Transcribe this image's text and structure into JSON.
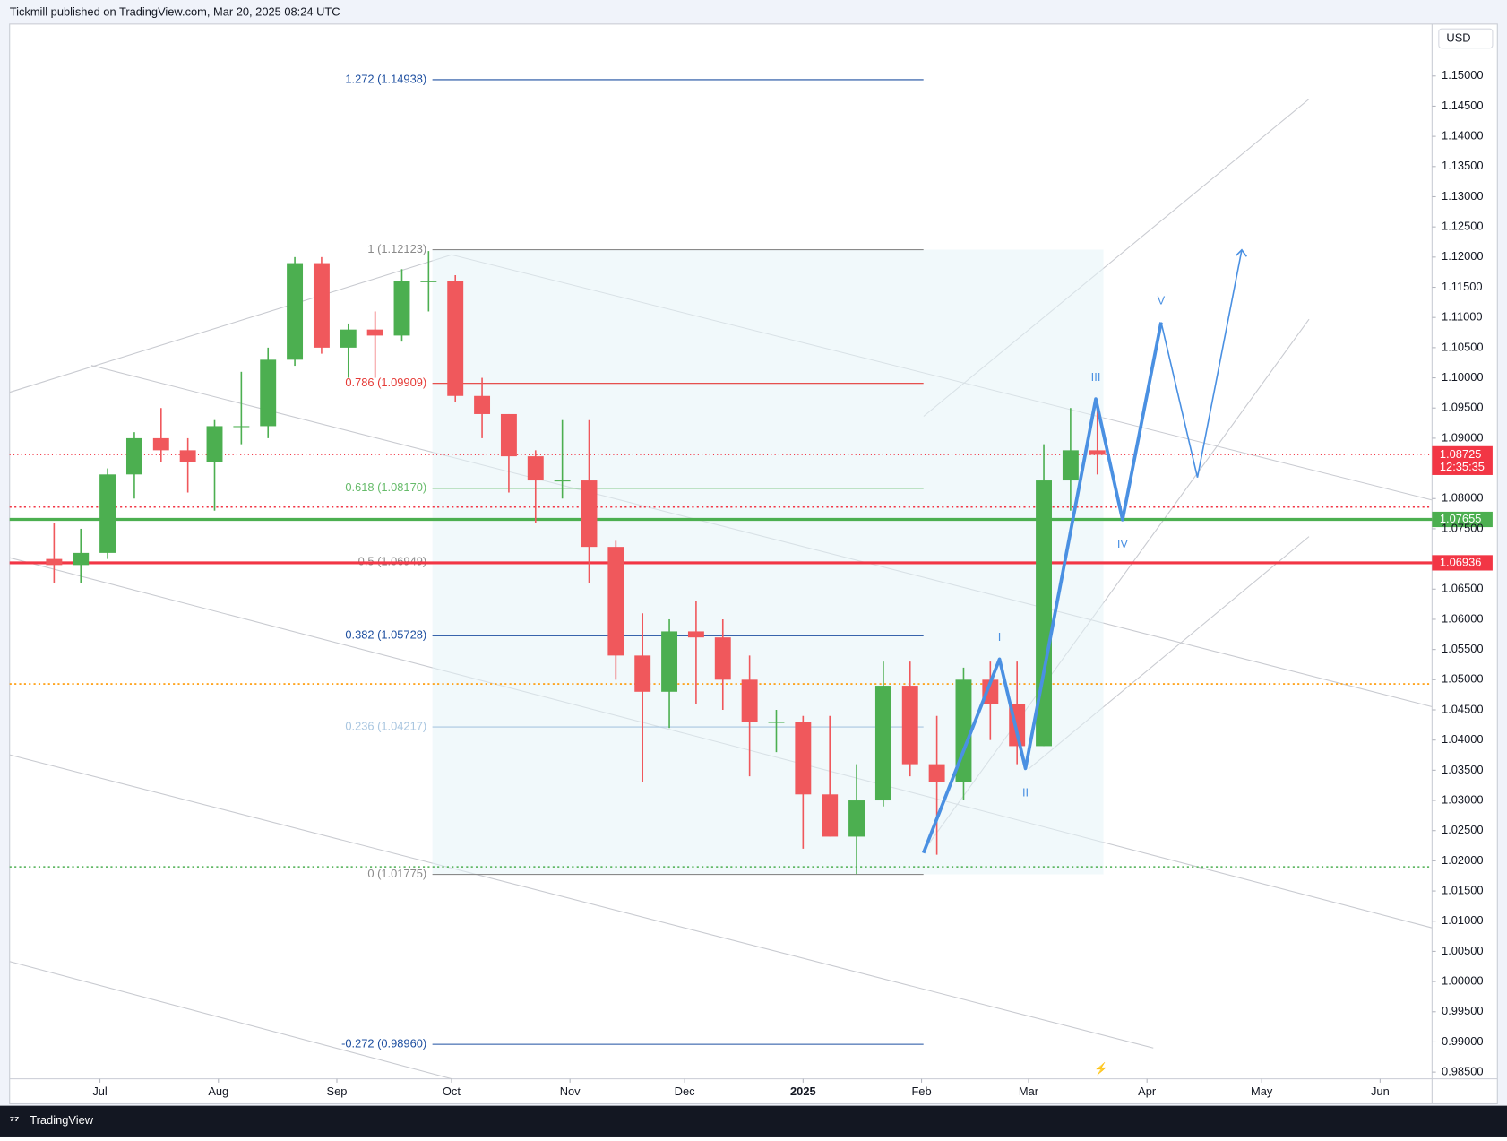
{
  "header": "Tickmill published on TradingView.com, Mar 20, 2025 08:24 UTC",
  "footer": "TradingView",
  "chart_data": {
    "type": "candlestick",
    "currency": "USD",
    "ylim": [
      0.98389,
      1.1586
    ],
    "xlim": [
      -23.64,
      348.59
    ],
    "yticks": [
      {
        "value": 1.15,
        "label": "1.15000"
      },
      {
        "value": 1.145,
        "label": "1.14500"
      },
      {
        "value": 1.14,
        "label": "1.14000"
      },
      {
        "value": 1.135,
        "label": "1.13500"
      },
      {
        "value": 1.13,
        "label": "1.13000"
      },
      {
        "value": 1.125,
        "label": "1.12500"
      },
      {
        "value": 1.12,
        "label": "1.12000"
      },
      {
        "value": 1.115,
        "label": "1.11500"
      },
      {
        "value": 1.11,
        "label": "1.11000"
      },
      {
        "value": 1.105,
        "label": "1.10500"
      },
      {
        "value": 1.1,
        "label": "1.10000"
      },
      {
        "value": 1.095,
        "label": "1.09500"
      },
      {
        "value": 1.09,
        "label": "1.09000"
      },
      {
        "value": 1.08,
        "label": "1.08000"
      },
      {
        "value": 1.075,
        "label": "1.07500"
      },
      {
        "value": 1.065,
        "label": "1.06500"
      },
      {
        "value": 1.06,
        "label": "1.06000"
      },
      {
        "value": 1.055,
        "label": "1.05500"
      },
      {
        "value": 1.05,
        "label": "1.05000"
      },
      {
        "value": 1.045,
        "label": "1.04500"
      },
      {
        "value": 1.04,
        "label": "1.04000"
      },
      {
        "value": 1.035,
        "label": "1.03500"
      },
      {
        "value": 1.03,
        "label": "1.03000"
      },
      {
        "value": 1.025,
        "label": "1.02500"
      },
      {
        "value": 1.02,
        "label": "1.02000"
      },
      {
        "value": 1.015,
        "label": "1.01500"
      },
      {
        "value": 1.01,
        "label": "1.01000"
      },
      {
        "value": 1.005,
        "label": "1.00500"
      },
      {
        "value": 1,
        "label": "1.00000"
      },
      {
        "value": 0.995,
        "label": "0.99500"
      },
      {
        "value": 0.99,
        "label": "0.99000"
      },
      {
        "value": 0.985,
        "label": "0.98500"
      }
    ],
    "xticks": [
      {
        "value": 0,
        "label": "Jul"
      },
      {
        "value": 31,
        "label": "Aug"
      },
      {
        "value": 62,
        "label": "Sep"
      },
      {
        "value": 92,
        "label": "Oct"
      },
      {
        "value": 123,
        "label": "Nov"
      },
      {
        "value": 153,
        "label": "Dec"
      },
      {
        "value": 184,
        "label": "2025"
      },
      {
        "value": 215,
        "label": "Feb"
      },
      {
        "value": 243,
        "label": "Mar"
      },
      {
        "value": 274,
        "label": "Apr"
      },
      {
        "value": 304,
        "label": "May"
      },
      {
        "value": 335,
        "label": "Jun"
      }
    ],
    "up_color": "#4caf50",
    "down_color": "#f0585c",
    "x": [
      -12,
      -5,
      2,
      9,
      16,
      23,
      30,
      37,
      44,
      51,
      58,
      65,
      72,
      79,
      86,
      93,
      100,
      107,
      114,
      121,
      128,
      135,
      142,
      149,
      156,
      163,
      170,
      177,
      184,
      191,
      198,
      205,
      212,
      219,
      226,
      233,
      240,
      247,
      254,
      261
    ],
    "open": [
      1.07,
      1.069,
      1.071,
      1.084,
      1.09,
      1.088,
      1.086,
      1.092,
      1.092,
      1.103,
      1.119,
      1.105,
      1.108,
      1.107,
      1.116,
      1.116,
      1.097,
      1.094,
      1.087,
      1.083,
      1.083,
      1.072,
      1.054,
      1.048,
      1.058,
      1.057,
      1.05,
      1.043,
      1.043,
      1.031,
      1.024,
      1.03,
      1.049,
      1.036,
      1.033,
      1.05,
      1.046,
      1.039,
      1.083,
      1.088
    ],
    "high": [
      1.076,
      1.075,
      1.085,
      1.091,
      1.095,
      1.09,
      1.093,
      1.101,
      1.105,
      1.12,
      1.12,
      1.109,
      1.111,
      1.118,
      1.121,
      1.117,
      1.1,
      1.094,
      1.088,
      1.093,
      1.093,
      1.073,
      1.061,
      1.06,
      1.063,
      1.06,
      1.054,
      1.045,
      1.044,
      1.044,
      1.036,
      1.053,
      1.053,
      1.044,
      1.052,
      1.053,
      1.053,
      1.089,
      1.095,
      1.096
    ],
    "low": [
      1.066,
      1.066,
      1.07,
      1.08,
      1.086,
      1.081,
      1.078,
      1.089,
      1.09,
      1.102,
      1.104,
      1.1,
      1.1,
      1.106,
      1.111,
      1.096,
      1.09,
      1.081,
      1.076,
      1.08,
      1.066,
      1.05,
      1.033,
      1.042,
      1.046,
      1.045,
      1.034,
      1.038,
      1.022,
      1.024,
      1.0178,
      1.029,
      1.034,
      1.021,
      1.03,
      1.04,
      1.036,
      1.039,
      1.078,
      1.084
    ],
    "close": [
      1.069,
      1.071,
      1.084,
      1.09,
      1.088,
      1.086,
      1.092,
      1.092,
      1.103,
      1.119,
      1.105,
      1.108,
      1.107,
      1.116,
      1.116,
      1.097,
      1.094,
      1.087,
      1.083,
      1.083,
      1.072,
      1.054,
      1.048,
      1.058,
      1.057,
      1.05,
      1.043,
      1.043,
      1.031,
      1.024,
      1.03,
      1.049,
      1.036,
      1.033,
      1.05,
      1.046,
      1.039,
      1.083,
      1.088,
      1.08725
    ],
    "fib": {
      "x": [
        87,
        215.5
      ],
      "box_x_end": 262.6,
      "levels": [
        {
          "value": 1.14938,
          "label": "1.272 (1.14938)",
          "color": "#1e4fa0"
        },
        {
          "value": 1.12123,
          "label": "1 (1.12123)",
          "color": "#8a8a8a"
        },
        {
          "value": 1.09909,
          "label": "0.786 (1.09909)",
          "color": "#e53935"
        },
        {
          "value": 1.0817,
          "label": "0.618 (1.08170)",
          "color": "#66bb6a"
        },
        {
          "value": 1.06949,
          "label": "0.5 (1.06949)",
          "color": "#8a8a8a"
        },
        {
          "value": 1.05728,
          "label": "0.382 (1.05728)",
          "color": "#1e4fa0"
        },
        {
          "value": 1.04217,
          "label": "0.236 (1.04217)",
          "color": "#a9c6e0"
        },
        {
          "value": 1.01775,
          "label": "0 (1.01775)",
          "color": "#8a8a8a"
        },
        {
          "value": 0.9896,
          "label": "-0.272 (0.98960)",
          "color": "#1e4fa0"
        }
      ]
    },
    "levels": [
      {
        "value": 1.07655,
        "color": "#4caf50",
        "style": "solid"
      },
      {
        "value": 1.06936,
        "color": "#f23645",
        "style": "solid"
      },
      {
        "value": 1.0786,
        "color": "#f23645",
        "style": "dotted"
      },
      {
        "value": 1.0493,
        "color": "#ff9800",
        "style": "dotted"
      },
      {
        "value": 1.019,
        "color": "#4caf50",
        "style": "dotted"
      }
    ],
    "last_price": {
      "value": 1.08725,
      "countdown": "12:35:35",
      "color": "#f23645"
    },
    "waves": {
      "color": "#4a90e2",
      "x": [
        215.5,
        235.4,
        242.2,
        260.6,
        267.6,
        277.7
      ],
      "y": [
        1.0213,
        1.0534,
        1.0353,
        1.0965,
        1.0765,
        1.1092
      ],
      "labels": [
        null,
        "I",
        "II",
        "III",
        "IV",
        "V"
      ]
    },
    "projection": {
      "x": [
        277.7,
        287.2,
        298.8
      ],
      "y": [
        1.1092,
        1.0835,
        1.1212
      ]
    }
  }
}
